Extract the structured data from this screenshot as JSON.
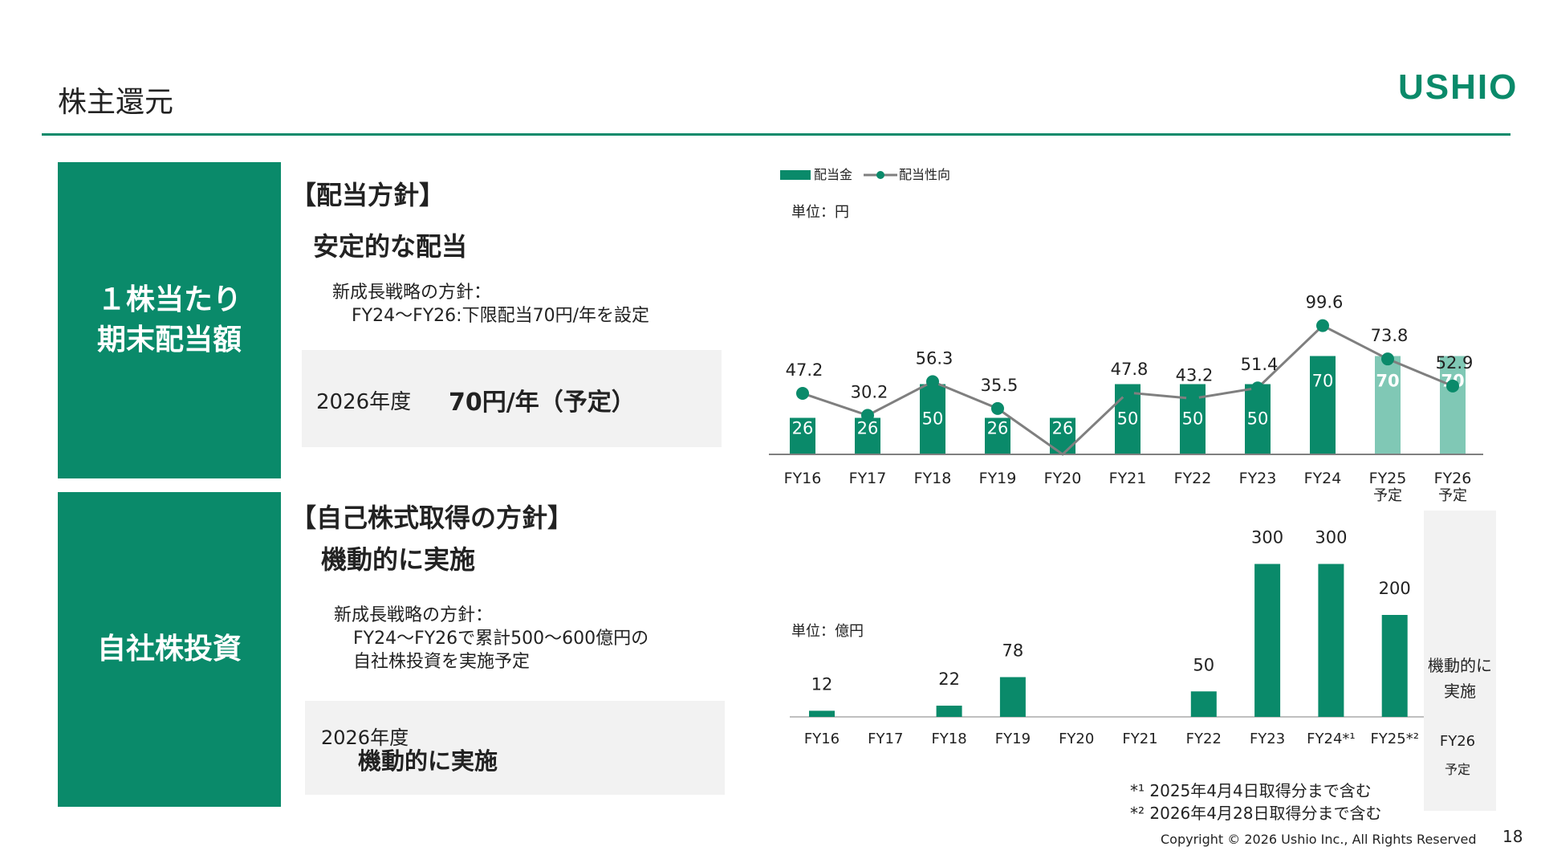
{
  "header": {
    "title": "株主還元",
    "logo": "USHIO"
  },
  "dividend": {
    "box_line1": "１株当たり",
    "box_line2": "期末配当額",
    "heading": "【配当方針】",
    "lead": "安定的な配当",
    "strategy_line1": "新成長戦略の方針：",
    "strategy_line2": "FY24〜FY26:下限配当70円/年を設定",
    "plan_year": "2026年度",
    "plan_value": "70円/年（予定）"
  },
  "buyback": {
    "box_label": "自社株投資",
    "heading": "【自己株式取得の方針】",
    "lead": "機動的に実施",
    "strategy_line1": "新成長戦略の方針：",
    "strategy_line2": "FY24〜FY26で累計500〜600億円の",
    "strategy_line3": "自社株投資を実施予定",
    "plan_year": "2026年度",
    "plan_value": "機動的に実施"
  },
  "chart_data": [
    {
      "type": "bar",
      "legend": [
        "配当金",
        "配当性向"
      ],
      "unit": "単位：円",
      "categories": [
        "FY16",
        "FY17",
        "FY18",
        "FY19",
        "FY20",
        "FY21",
        "FY22",
        "FY23",
        "FY24",
        "FY25",
        "FY26"
      ],
      "category_sublabels": [
        "",
        "",
        "",
        "",
        "",
        "",
        "",
        "",
        "",
        "予定",
        "予定"
      ],
      "series": [
        {
          "name": "配当金",
          "type": "bar",
          "values": [
            26,
            26,
            50,
            26,
            26,
            50,
            50,
            50,
            70,
            70,
            70
          ],
          "forecast": [
            false,
            false,
            false,
            false,
            false,
            false,
            false,
            false,
            false,
            true,
            true
          ]
        },
        {
          "name": "配当性向",
          "type": "line",
          "values": [
            47.2,
            30.2,
            56.3,
            35.5,
            null,
            47.8,
            43.2,
            51.4,
            99.6,
            73.8,
            52.9
          ]
        }
      ],
      "colors": {
        "bar": "#0a8a6a",
        "bar_forecast": "#80c8b5",
        "line": "#7f7f7f",
        "marker": "#0a8a6a"
      }
    },
    {
      "type": "bar",
      "unit": "単位：億円",
      "categories": [
        "FY16",
        "FY17",
        "FY18",
        "FY19",
        "FY20",
        "FY21",
        "FY22",
        "FY23",
        "FY24*¹",
        "FY25*²",
        "FY26"
      ],
      "last_category_sublabel": "予定",
      "values": [
        12,
        null,
        22,
        78,
        null,
        null,
        50,
        300,
        300,
        200,
        null
      ],
      "fy26_note_line1": "機動的に",
      "fy26_note_line2": "実施",
      "footnotes": [
        "*¹ 2025年4月4日取得分まで含む",
        "*² 2026年4月28日取得分まで含む"
      ],
      "colors": {
        "bar": "#0a8a6a",
        "shade": "#f2f2f2"
      }
    }
  ],
  "footer": {
    "copyright": "Copyright © 2026 Ushio Inc., All Rights Reserved",
    "page": "18"
  }
}
